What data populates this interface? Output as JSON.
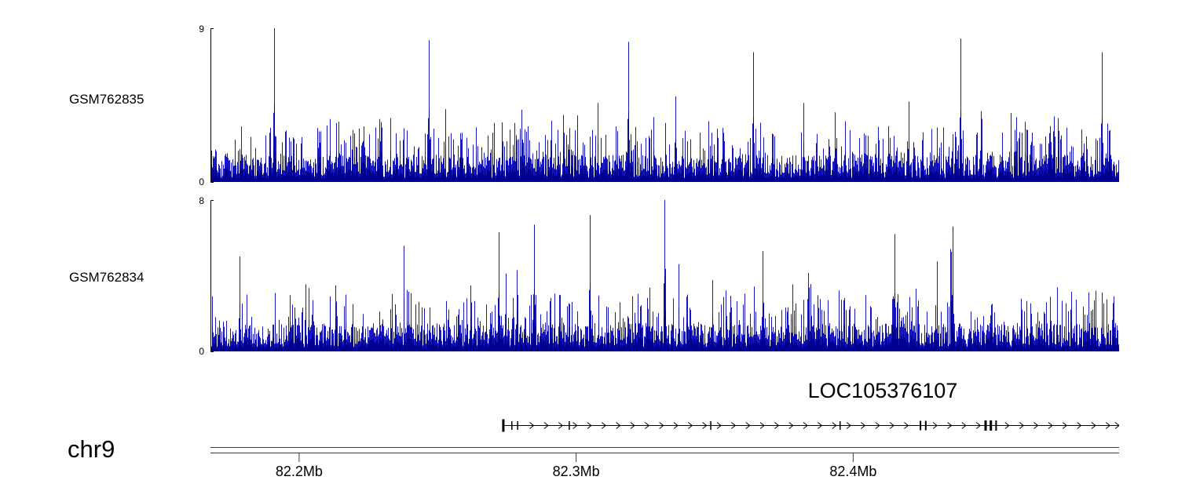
{
  "view": {
    "background": "#ffffff"
  },
  "chart_data": {
    "type": "area",
    "subtype": "genome-coverage-browser",
    "x_axis": {
      "chromosome": "chr9",
      "range_mb": [
        82.168,
        82.496
      ],
      "ticks": [
        {
          "mb": 82.2,
          "label": "82.2Mb"
        },
        {
          "mb": 82.3,
          "label": "82.3Mb"
        },
        {
          "mb": 82.4,
          "label": "82.4Mb"
        }
      ]
    },
    "tracks": [
      {
        "name": "GSM762835",
        "ylim": [
          0,
          9
        ],
        "color_spike": "#1717c3",
        "color_dense": "#000090",
        "seed": 762835,
        "n_points": 1157,
        "baseline_range": [
          0.25,
          1.6
        ],
        "mid_spike": {
          "prob": 0.32,
          "max_extra": 2.3
        },
        "tall_spike": {
          "prob": 0.06,
          "max_extra": 3.2
        },
        "peaks": [
          {
            "mb": 82.191,
            "value": 9.0
          },
          {
            "mb": 82.247,
            "value": 8.3
          },
          {
            "mb": 82.319,
            "value": 8.2
          },
          {
            "mb": 82.364,
            "value": 7.6
          },
          {
            "mb": 82.439,
            "value": 8.4
          },
          {
            "mb": 82.49,
            "value": 7.6
          }
        ]
      },
      {
        "name": "GSM762834",
        "ylim": [
          0,
          8
        ],
        "color_spike": "#1717c3",
        "color_dense": "#000090",
        "seed": 762834,
        "n_points": 1157,
        "baseline_range": [
          0.25,
          1.5
        ],
        "mid_spike": {
          "prob": 0.3,
          "max_extra": 2.1
        },
        "tall_spike": {
          "prob": 0.05,
          "max_extra": 2.9
        },
        "peaks": [
          {
            "mb": 82.272,
            "value": 6.3
          },
          {
            "mb": 82.285,
            "value": 6.7
          },
          {
            "mb": 82.305,
            "value": 7.2
          },
          {
            "mb": 82.332,
            "value": 8.0
          },
          {
            "mb": 82.415,
            "value": 6.2
          },
          {
            "mb": 82.436,
            "value": 6.6
          }
        ]
      }
    ],
    "gene_track": {
      "label": "LOC105376107",
      "strand": "+",
      "start_mb": 82.2737,
      "end_mb": 82.496,
      "arrow_spacing_mb": 0.0052,
      "exons": [
        {
          "mb": 82.2737,
          "w": 3,
          "h": 16
        },
        {
          "mb": 82.2768,
          "w": 1.5,
          "h": 11
        },
        {
          "mb": 82.2789,
          "w": 1.5,
          "h": 11
        },
        {
          "mb": 82.2975,
          "w": 1.5,
          "h": 11
        },
        {
          "mb": 82.3486,
          "w": 1.5,
          "h": 11
        },
        {
          "mb": 82.3953,
          "w": 1.5,
          "h": 11
        },
        {
          "mb": 82.4243,
          "w": 2,
          "h": 12
        },
        {
          "mb": 82.4262,
          "w": 2,
          "h": 12
        },
        {
          "mb": 82.4478,
          "w": 3,
          "h": 13
        },
        {
          "mb": 82.4497,
          "w": 3,
          "h": 13
        },
        {
          "mb": 82.4516,
          "w": 2,
          "h": 13
        }
      ]
    }
  }
}
